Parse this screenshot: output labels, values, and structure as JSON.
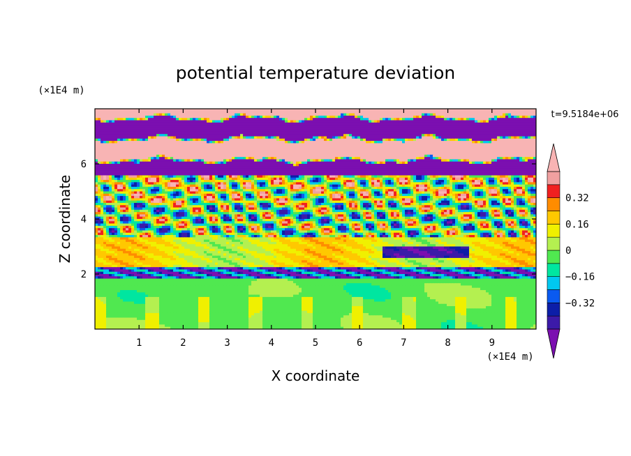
{
  "chart_data": {
    "type": "heatmap",
    "title": "potential temperature deviation",
    "xlabel": "X coordinate",
    "ylabel": "Z coordinate",
    "x_unit_label": "(×1E4 m)",
    "y_unit_label": "(×1E4 m)",
    "time_label": "t=9.5184e+06",
    "xlim": [
      0,
      10
    ],
    "ylim": [
      0,
      8
    ],
    "x_ticks": [
      "1",
      "2",
      "3",
      "4",
      "5",
      "6",
      "7",
      "8",
      "9"
    ],
    "y_ticks": [
      "2",
      "4",
      "6"
    ],
    "colorbar": {
      "levels": [
        -0.48,
        -0.4,
        -0.32,
        -0.24,
        -0.16,
        -0.08,
        0,
        0.08,
        0.16,
        0.24,
        0.32,
        0.4,
        0.48
      ],
      "tick_labels": [
        "0.32",
        "0.16",
        "0",
        "−0.16",
        "−0.32"
      ],
      "tick_values": [
        0.32,
        0.16,
        0,
        -0.16,
        -0.32
      ],
      "extend": "both",
      "colors": [
        "#7b0fb0",
        "#3c1aa8",
        "#0c1ea8",
        "#0a5af0",
        "#00c8f0",
        "#00e6a0",
        "#50e850",
        "#b4f050",
        "#f0f000",
        "#ffc800",
        "#ff8c00",
        "#f02020",
        "#f0a0a0",
        "#f8b4b4"
      ]
    },
    "field_description_levels": {
      "z_0_to_2": "mostly near zero (-0.08 to 0.08)",
      "z_2_to_4": "slightly positive with negative bands near z=2",
      "z_4_to_6": "oscillating strongly positive/negative",
      "z_6_to_8": "alternating bands of strongly positive and strongly negative"
    }
  }
}
